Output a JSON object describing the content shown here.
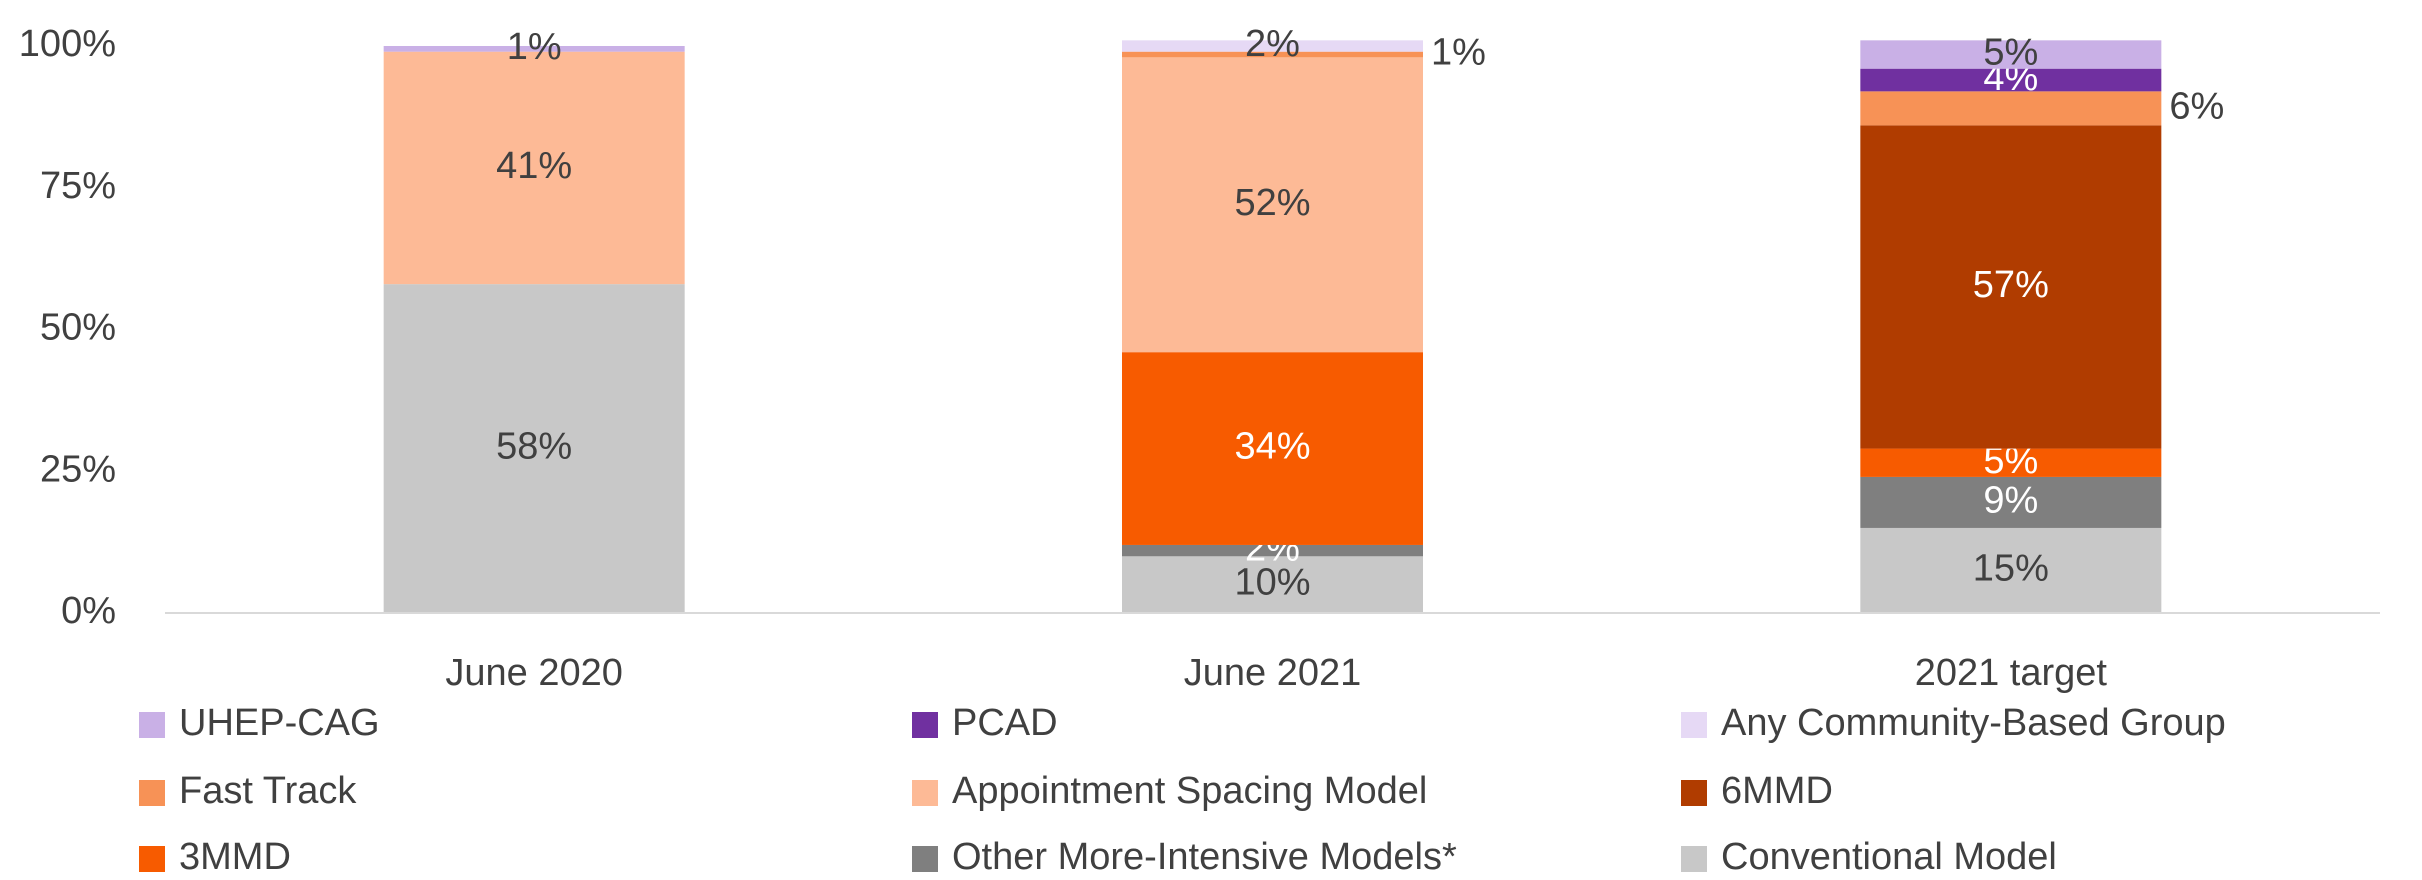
{
  "chart_data": {
    "type": "stacked_bar",
    "categories": [
      "June 2020",
      "June 2021",
      "2021 target"
    ],
    "ylim": [
      0,
      100
    ],
    "yticks": [
      {
        "value": 0,
        "label": "0%"
      },
      {
        "value": 25,
        "label": "25%"
      },
      {
        "value": 50,
        "label": "50%"
      },
      {
        "value": 75,
        "label": "75%"
      },
      {
        "value": 100,
        "label": "100%"
      }
    ],
    "grid": false,
    "legend": "bottom",
    "series": [
      {
        "name": "UHEP-CAG",
        "color": "#c9b0e6",
        "values": [
          1,
          null,
          5
        ],
        "value_labels": [
          "1%",
          null,
          "5%"
        ]
      },
      {
        "name": "PCAD",
        "color": "#7030a0",
        "values": [
          null,
          null,
          4
        ],
        "value_labels": [
          null,
          null,
          "4%"
        ]
      },
      {
        "name": "Any Community-Based Group",
        "color": "#e6d9f5",
        "values": [
          null,
          2,
          null
        ],
        "value_labels": [
          null,
          "2%",
          null
        ]
      },
      {
        "name": "Fast Track",
        "color": "#f79256",
        "values": [
          null,
          1,
          6
        ],
        "value_labels": [
          null,
          "1%",
          "6%"
        ]
      },
      {
        "name": "Appointment Spacing Model",
        "color": "#fdba96",
        "values": [
          41,
          52,
          null
        ],
        "value_labels": [
          "41%",
          "52%",
          null
        ]
      },
      {
        "name": "6MMD",
        "color": "#b03c00",
        "values": [
          null,
          null,
          57
        ],
        "value_labels": [
          null,
          null,
          "57%"
        ]
      },
      {
        "name": "3MMD",
        "color": "#f75b00",
        "values": [
          null,
          34,
          5
        ],
        "value_labels": [
          null,
          "34%",
          "5%"
        ]
      },
      {
        "name": "Other More-Intensive Models*",
        "color": "#7f7f7f",
        "values": [
          null,
          2,
          9
        ],
        "value_labels": [
          null,
          "2%",
          "9%"
        ]
      },
      {
        "name": "Conventional Model",
        "color": "#c8c8c8",
        "values": [
          58,
          10,
          15
        ],
        "value_labels": [
          "58%",
          "10%",
          "15%"
        ]
      }
    ]
  }
}
